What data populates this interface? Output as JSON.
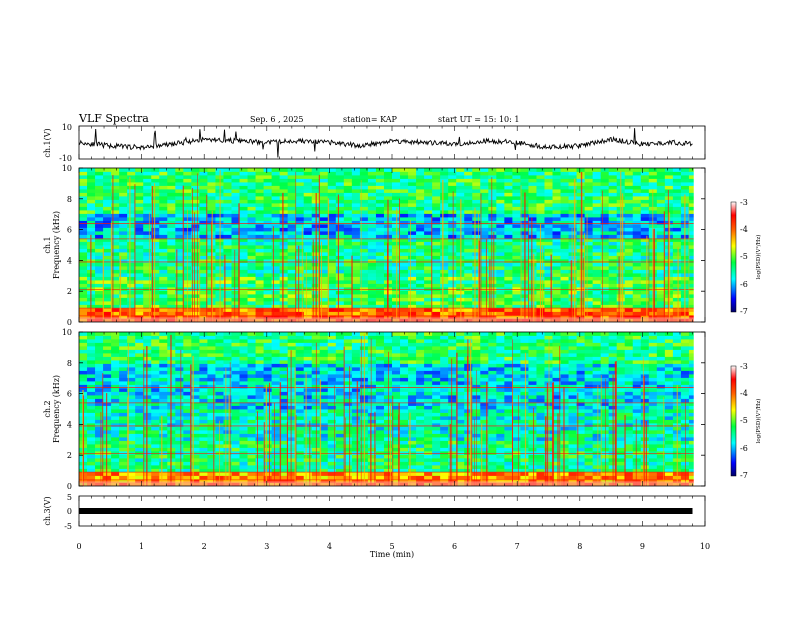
{
  "header": {
    "title": "VLF Spectra",
    "date": "Sep. 6 , 2025",
    "station": "station= KAP",
    "start": "start UT = 15: 10: 1"
  },
  "colors": {
    "spectrogram_scale": [
      "#00008b",
      "#0000ff",
      "#00bfff",
      "#00ffff",
      "#00ff80",
      "#80ff00",
      "#ffff00",
      "#ff8000",
      "#ff0000",
      "#ffffff"
    ],
    "trace": "#000000"
  },
  "chart_data": [
    {
      "type": "line",
      "name": "ch1-waveform",
      "ylabel": "ch.1(V)",
      "ylim": [
        -10,
        10
      ],
      "yticks": [
        "10",
        "-10"
      ],
      "xlim": [
        0,
        10
      ],
      "x": [
        0,
        0.5,
        1,
        1.5,
        2,
        2.5,
        3,
        3.5,
        4,
        4.5,
        5,
        5.5,
        6,
        6.5,
        7,
        7.5,
        8,
        8.5,
        9,
        9.5,
        9.8
      ],
      "y": [
        0,
        -2,
        -3,
        -1,
        2,
        1,
        0,
        1,
        0,
        -2,
        1,
        0,
        -1,
        1,
        0,
        -3,
        -2,
        2,
        -1,
        0,
        -1
      ]
    },
    {
      "type": "heatmap",
      "name": "ch1-spectrogram",
      "ylabel": "ch.1\nFrequency (kHz)",
      "ylabel_lines": [
        "ch.1",
        "Frequency (kHz)"
      ],
      "ylim": [
        0,
        10
      ],
      "yticks": [
        "0",
        "2",
        "4",
        "6",
        "8",
        "10"
      ],
      "xlim": [
        0,
        10
      ],
      "colorbar": {
        "label": "log(PSD)(V²/Hz)",
        "min": -7,
        "max": -3,
        "ticks": [
          "-3",
          "-4",
          "-5",
          "-6",
          "-7"
        ]
      },
      "bands_khz": [
        {
          "from": 0,
          "to": 1,
          "level": -4.0
        },
        {
          "from": 1,
          "to": 3,
          "level": -5.2
        },
        {
          "from": 3,
          "to": 5.5,
          "level": -5.4
        },
        {
          "from": 5.5,
          "to": 7,
          "level": -5.9
        },
        {
          "from": 7,
          "to": 10,
          "level": -5.3
        }
      ]
    },
    {
      "type": "heatmap",
      "name": "ch2-spectrogram",
      "ylabel": "ch.2\nFrequency (kHz)",
      "ylabel_lines": [
        "ch.2",
        "Frequency (kHz)"
      ],
      "ylim": [
        0,
        10
      ],
      "yticks": [
        "0",
        "2",
        "4",
        "6",
        "8",
        "10"
      ],
      "xlim": [
        0,
        10
      ],
      "colorbar": {
        "label": "log(PSD)(V²/Hz)",
        "min": -7,
        "max": -3,
        "ticks": [
          "-3",
          "-4",
          "-5",
          "-6",
          "-7"
        ]
      },
      "bands_khz": [
        {
          "from": 0,
          "to": 1,
          "level": -4.2
        },
        {
          "from": 1,
          "to": 3,
          "level": -5.4
        },
        {
          "from": 3,
          "to": 5,
          "level": -5.6
        },
        {
          "from": 5,
          "to": 8,
          "level": -5.8
        },
        {
          "from": 8,
          "to": 10,
          "level": -5.3
        }
      ]
    },
    {
      "type": "line",
      "name": "ch3-trace",
      "ylabel": "ch.3(V)",
      "ylim": [
        -5,
        5
      ],
      "yticks": [
        "5",
        "0",
        "-5"
      ],
      "xlim": [
        0,
        10
      ],
      "x": [
        0,
        9.8
      ],
      "y": [
        0,
        0
      ]
    }
  ],
  "xaxis": {
    "label": "Time (min)",
    "ticks": [
      "0",
      "1",
      "2",
      "3",
      "4",
      "5",
      "6",
      "7",
      "8",
      "9",
      "10"
    ],
    "xlim": [
      0,
      10
    ]
  }
}
